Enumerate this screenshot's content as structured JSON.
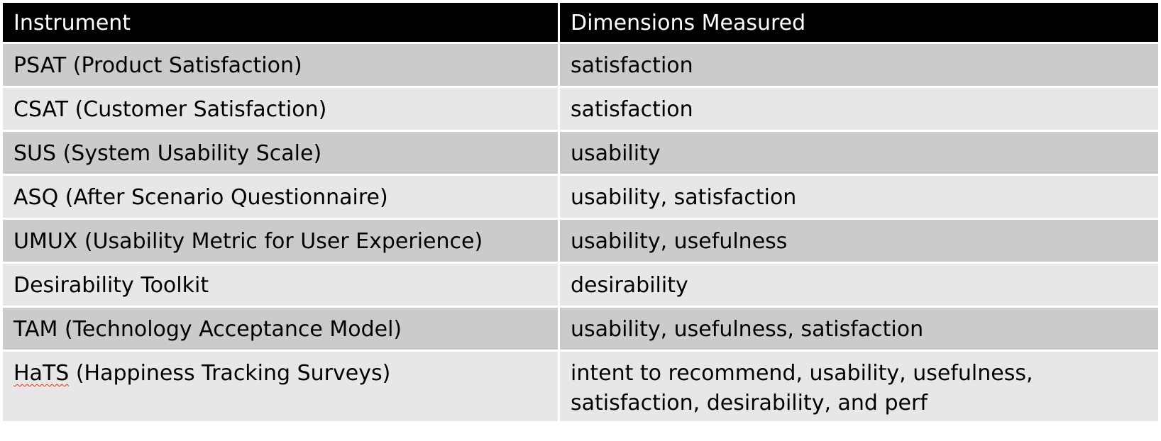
{
  "table": {
    "headers": [
      "Instrument",
      "Dimensions Measured"
    ],
    "rows": [
      {
        "instrument": "PSAT (Product Satisfaction)",
        "dimensions": "satisfaction"
      },
      {
        "instrument": "CSAT (Customer Satisfaction)",
        "dimensions": "satisfaction"
      },
      {
        "instrument": "SUS (System Usability Scale)",
        "dimensions": "usability"
      },
      {
        "instrument": "ASQ (After Scenario Questionnaire)",
        "dimensions": "usability, satisfaction"
      },
      {
        "instrument": "UMUX (Usability Metric for User Experience)",
        "dimensions": "usability, usefulness"
      },
      {
        "instrument": "Desirability Toolkit",
        "dimensions": "desirability"
      },
      {
        "instrument": "TAM (Technology Acceptance Model)",
        "dimensions": "usability, usefulness, satisfaction"
      },
      {
        "instrument_abbrev": "HaTS",
        "instrument_rest": " (Happiness Tracking Surveys)",
        "dimensions_line1": "intent to recommend, usability, usefulness,",
        "dimensions_line2": "satisfaction, desirability, and perf"
      }
    ]
  },
  "colors": {
    "header_bg": "#000000",
    "header_text": "#ffffff",
    "row_dark": "#cbcbcb",
    "row_light": "#e7e7e7",
    "spellcheck_underline": "#e0342a"
  }
}
